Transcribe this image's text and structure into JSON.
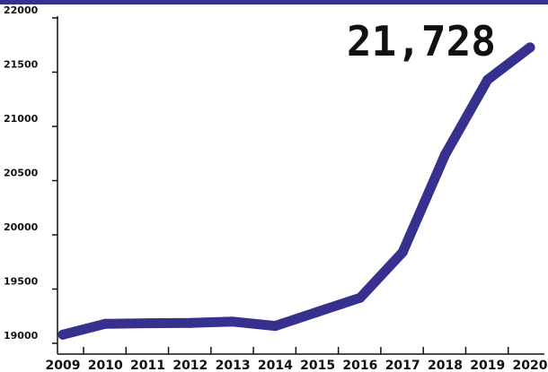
{
  "colors": {
    "line": "#36308e",
    "header_band": "#36308e",
    "axis": "#111111",
    "background": "#ffffff"
  },
  "chart_data": {
    "type": "line",
    "title": "",
    "xlabel": "",
    "ylabel": "",
    "x": [
      2009,
      2010,
      2011,
      2012,
      2013,
      2014,
      2015,
      2016,
      2017,
      2018,
      2019,
      2020
    ],
    "x_tick_labels": [
      "2009",
      "2010",
      "2011",
      "2012",
      "2013",
      "2014",
      "2015",
      "2016",
      "2017",
      "2018",
      "2019",
      "2020"
    ],
    "series": [
      {
        "values": [
          19080,
          19180,
          19185,
          19188,
          19200,
          19160,
          19290,
          19420,
          19840,
          20740,
          21430,
          21728
        ]
      }
    ],
    "ylim": [
      19000,
      22000
    ],
    "y_ticks": [
      19000,
      19500,
      20000,
      20500,
      21000,
      21500,
      22000
    ],
    "y_tick_labels": [
      "19000",
      "19500",
      "20000",
      "20500",
      "21000",
      "21500",
      "22000"
    ],
    "callout": "21,728",
    "grid": false,
    "legend": "none"
  }
}
